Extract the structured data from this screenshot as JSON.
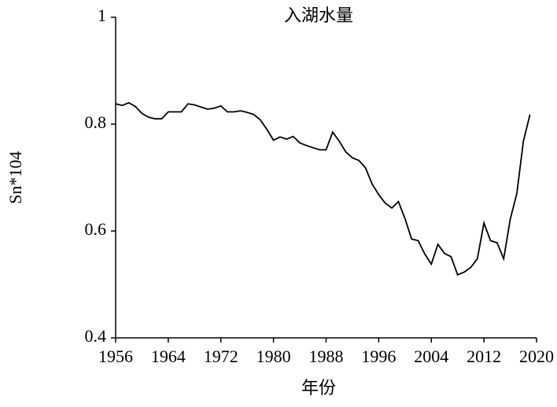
{
  "chart_data": {
    "type": "line",
    "title": "入湖水量",
    "x_label": "年份",
    "y_label": "Sn*104",
    "x": [
      1956,
      1957,
      1958,
      1959,
      1960,
      1961,
      1962,
      1963,
      1964,
      1965,
      1966,
      1967,
      1968,
      1969,
      1970,
      1971,
      1972,
      1973,
      1974,
      1975,
      1976,
      1977,
      1978,
      1979,
      1980,
      1981,
      1982,
      1983,
      1984,
      1985,
      1986,
      1987,
      1988,
      1989,
      1990,
      1991,
      1992,
      1993,
      1994,
      1995,
      1996,
      1997,
      1998,
      1999,
      2000,
      2001,
      2002,
      2003,
      2004,
      2005,
      2006,
      2007,
      2008,
      2009,
      2010,
      2011,
      2012,
      2013,
      2014,
      2015,
      2016,
      2017,
      2018,
      2019
    ],
    "series": [
      {
        "color": "#000000",
        "values": [
          0.838,
          0.835,
          0.84,
          0.833,
          0.82,
          0.813,
          0.81,
          0.81,
          0.823,
          0.823,
          0.823,
          0.838,
          0.836,
          0.832,
          0.828,
          0.83,
          0.834,
          0.823,
          0.823,
          0.825,
          0.822,
          0.818,
          0.808,
          0.79,
          0.77,
          0.776,
          0.772,
          0.777,
          0.765,
          0.76,
          0.756,
          0.752,
          0.752,
          0.785,
          0.768,
          0.748,
          0.737,
          0.732,
          0.718,
          0.688,
          0.668,
          0.652,
          0.643,
          0.655,
          0.623,
          0.585,
          0.582,
          0.557,
          0.538,
          0.575,
          0.558,
          0.552,
          0.518,
          0.523,
          0.532,
          0.548,
          0.615,
          0.582,
          0.578,
          0.548,
          0.622,
          0.67,
          0.768,
          0.818
        ]
      }
    ],
    "xlim": [
      1956,
      2020
    ],
    "xticks": [
      1956,
      1964,
      1972,
      1980,
      1988,
      1996,
      2004,
      2012,
      2020
    ],
    "ylim": [
      0.4,
      1
    ],
    "yticks": [
      0.4,
      0.6,
      0.8,
      1
    ]
  }
}
